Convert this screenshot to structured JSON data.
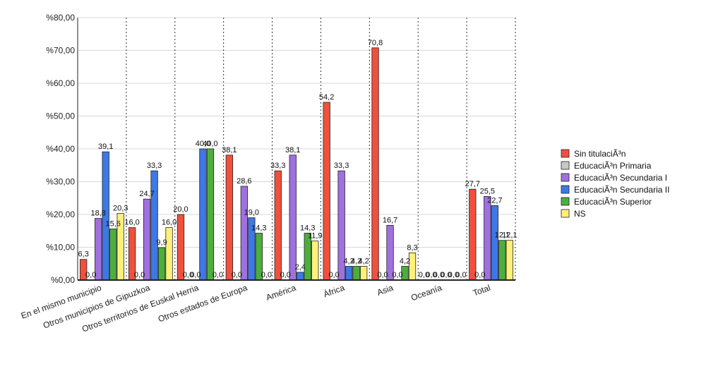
{
  "chart_data": {
    "type": "bar",
    "categories": [
      "En el mismo municipio",
      "Otros municipios de Gipuzkoa",
      "Otros territorios de Euskal Herria",
      "Otros estados de Europa",
      "América",
      "África",
      "Asia",
      "Oceanía",
      "Total"
    ],
    "series": [
      {
        "name": "Sin titulaciÃ³n",
        "color": "#f0503c",
        "values": [
          6.3,
          16.0,
          20.0,
          38.1,
          33.3,
          54.2,
          70.8,
          0.0,
          27.7
        ],
        "labels": [
          "6,3",
          "16,0",
          "20,0",
          "38,1",
          "33,3",
          "54,2",
          "70,8",
          "0,0",
          "27,7"
        ]
      },
      {
        "name": "EducaciÃ³n Primaria",
        "color": "#c8c8c8",
        "values": [
          0.0,
          0.0,
          0.0,
          0.0,
          0.0,
          0.0,
          0.0,
          0.0,
          0.0
        ],
        "labels": [
          "0,0",
          "0,0",
          "0,0",
          "0,0",
          "0,0",
          "0,0",
          "0,0",
          "0,0",
          "0,0"
        ]
      },
      {
        "name": "EducaciÃ³n Secundaria I",
        "color": "#a070e0",
        "values": [
          18.8,
          24.7,
          0.0,
          28.6,
          38.1,
          33.3,
          16.7,
          0.0,
          25.5
        ],
        "labels": [
          "18,8",
          "24,7",
          "0,0",
          "28,6",
          "38,1",
          "33,3",
          "16,7",
          "0,0",
          "25,5"
        ]
      },
      {
        "name": "EducaciÃ³n Secundaria II",
        "color": "#3c78e6",
        "values": [
          39.1,
          33.3,
          40.0,
          19.0,
          2.4,
          4.2,
          0.0,
          0.0,
          22.7
        ],
        "labels": [
          "39,1",
          "33,3",
          "40,0",
          "19,0",
          "2,4",
          "4,2",
          "0,0",
          "0,0",
          "22,7"
        ]
      },
      {
        "name": "EducaciÃ³n Superior",
        "color": "#4caf3c",
        "values": [
          15.6,
          9.9,
          40.0,
          14.3,
          14.3,
          4.2,
          4.2,
          0.0,
          12.1
        ],
        "labels": [
          "15,6",
          "9,9",
          "40,0",
          "14,3",
          "14,3",
          "4,2",
          "4,2",
          "0,0",
          "12,1"
        ]
      },
      {
        "name": "NS",
        "color": "#fff07a",
        "values": [
          20.3,
          16.0,
          0.0,
          0.0,
          11.9,
          4.2,
          8.3,
          0.0,
          12.1
        ],
        "labels": [
          "20,3",
          "16,0",
          "0,0",
          "0,0",
          "11,9",
          "4,2",
          "8,3",
          "0,0",
          "12,1"
        ]
      }
    ],
    "y_ticks": [
      0,
      10,
      20,
      30,
      40,
      50,
      60,
      70,
      80
    ],
    "y_tick_labels": [
      "%0,00",
      "%10,00",
      "%20,00",
      "%30,00",
      "%40,00",
      "%50,00",
      "%60,00",
      "%70,00",
      "%80,00"
    ],
    "ylim": [
      0,
      80
    ],
    "grid": true,
    "legend_position": "right"
  }
}
